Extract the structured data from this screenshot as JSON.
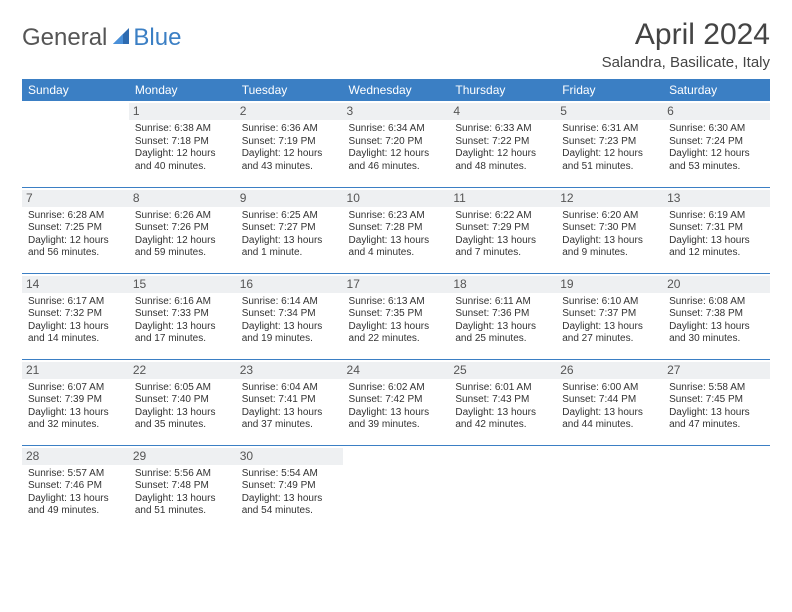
{
  "logo": {
    "part1": "General",
    "part2": "Blue"
  },
  "title": "April 2024",
  "location": "Salandra, Basilicate, Italy",
  "colors": {
    "header_bg": "#3b7fc4",
    "header_text": "#ffffff",
    "cell_border": "#3b7fc4",
    "daynum_bg": "#eef0f2",
    "page_bg": "#ffffff"
  },
  "day_names": [
    "Sunday",
    "Monday",
    "Tuesday",
    "Wednesday",
    "Thursday",
    "Friday",
    "Saturday"
  ],
  "weeks": [
    [
      {
        "n": "",
        "sr": "",
        "ss": "",
        "d1": "",
        "d2": "",
        "empty": true
      },
      {
        "n": "1",
        "sr": "Sunrise: 6:38 AM",
        "ss": "Sunset: 7:18 PM",
        "d1": "Daylight: 12 hours",
        "d2": "and 40 minutes."
      },
      {
        "n": "2",
        "sr": "Sunrise: 6:36 AM",
        "ss": "Sunset: 7:19 PM",
        "d1": "Daylight: 12 hours",
        "d2": "and 43 minutes."
      },
      {
        "n": "3",
        "sr": "Sunrise: 6:34 AM",
        "ss": "Sunset: 7:20 PM",
        "d1": "Daylight: 12 hours",
        "d2": "and 46 minutes."
      },
      {
        "n": "4",
        "sr": "Sunrise: 6:33 AM",
        "ss": "Sunset: 7:22 PM",
        "d1": "Daylight: 12 hours",
        "d2": "and 48 minutes."
      },
      {
        "n": "5",
        "sr": "Sunrise: 6:31 AM",
        "ss": "Sunset: 7:23 PM",
        "d1": "Daylight: 12 hours",
        "d2": "and 51 minutes."
      },
      {
        "n": "6",
        "sr": "Sunrise: 6:30 AM",
        "ss": "Sunset: 7:24 PM",
        "d1": "Daylight: 12 hours",
        "d2": "and 53 minutes."
      }
    ],
    [
      {
        "n": "7",
        "sr": "Sunrise: 6:28 AM",
        "ss": "Sunset: 7:25 PM",
        "d1": "Daylight: 12 hours",
        "d2": "and 56 minutes."
      },
      {
        "n": "8",
        "sr": "Sunrise: 6:26 AM",
        "ss": "Sunset: 7:26 PM",
        "d1": "Daylight: 12 hours",
        "d2": "and 59 minutes."
      },
      {
        "n": "9",
        "sr": "Sunrise: 6:25 AM",
        "ss": "Sunset: 7:27 PM",
        "d1": "Daylight: 13 hours",
        "d2": "and 1 minute."
      },
      {
        "n": "10",
        "sr": "Sunrise: 6:23 AM",
        "ss": "Sunset: 7:28 PM",
        "d1": "Daylight: 13 hours",
        "d2": "and 4 minutes."
      },
      {
        "n": "11",
        "sr": "Sunrise: 6:22 AM",
        "ss": "Sunset: 7:29 PM",
        "d1": "Daylight: 13 hours",
        "d2": "and 7 minutes."
      },
      {
        "n": "12",
        "sr": "Sunrise: 6:20 AM",
        "ss": "Sunset: 7:30 PM",
        "d1": "Daylight: 13 hours",
        "d2": "and 9 minutes."
      },
      {
        "n": "13",
        "sr": "Sunrise: 6:19 AM",
        "ss": "Sunset: 7:31 PM",
        "d1": "Daylight: 13 hours",
        "d2": "and 12 minutes."
      }
    ],
    [
      {
        "n": "14",
        "sr": "Sunrise: 6:17 AM",
        "ss": "Sunset: 7:32 PM",
        "d1": "Daylight: 13 hours",
        "d2": "and 14 minutes."
      },
      {
        "n": "15",
        "sr": "Sunrise: 6:16 AM",
        "ss": "Sunset: 7:33 PM",
        "d1": "Daylight: 13 hours",
        "d2": "and 17 minutes."
      },
      {
        "n": "16",
        "sr": "Sunrise: 6:14 AM",
        "ss": "Sunset: 7:34 PM",
        "d1": "Daylight: 13 hours",
        "d2": "and 19 minutes."
      },
      {
        "n": "17",
        "sr": "Sunrise: 6:13 AM",
        "ss": "Sunset: 7:35 PM",
        "d1": "Daylight: 13 hours",
        "d2": "and 22 minutes."
      },
      {
        "n": "18",
        "sr": "Sunrise: 6:11 AM",
        "ss": "Sunset: 7:36 PM",
        "d1": "Daylight: 13 hours",
        "d2": "and 25 minutes."
      },
      {
        "n": "19",
        "sr": "Sunrise: 6:10 AM",
        "ss": "Sunset: 7:37 PM",
        "d1": "Daylight: 13 hours",
        "d2": "and 27 minutes."
      },
      {
        "n": "20",
        "sr": "Sunrise: 6:08 AM",
        "ss": "Sunset: 7:38 PM",
        "d1": "Daylight: 13 hours",
        "d2": "and 30 minutes."
      }
    ],
    [
      {
        "n": "21",
        "sr": "Sunrise: 6:07 AM",
        "ss": "Sunset: 7:39 PM",
        "d1": "Daylight: 13 hours",
        "d2": "and 32 minutes."
      },
      {
        "n": "22",
        "sr": "Sunrise: 6:05 AM",
        "ss": "Sunset: 7:40 PM",
        "d1": "Daylight: 13 hours",
        "d2": "and 35 minutes."
      },
      {
        "n": "23",
        "sr": "Sunrise: 6:04 AM",
        "ss": "Sunset: 7:41 PM",
        "d1": "Daylight: 13 hours",
        "d2": "and 37 minutes."
      },
      {
        "n": "24",
        "sr": "Sunrise: 6:02 AM",
        "ss": "Sunset: 7:42 PM",
        "d1": "Daylight: 13 hours",
        "d2": "and 39 minutes."
      },
      {
        "n": "25",
        "sr": "Sunrise: 6:01 AM",
        "ss": "Sunset: 7:43 PM",
        "d1": "Daylight: 13 hours",
        "d2": "and 42 minutes."
      },
      {
        "n": "26",
        "sr": "Sunrise: 6:00 AM",
        "ss": "Sunset: 7:44 PM",
        "d1": "Daylight: 13 hours",
        "d2": "and 44 minutes."
      },
      {
        "n": "27",
        "sr": "Sunrise: 5:58 AM",
        "ss": "Sunset: 7:45 PM",
        "d1": "Daylight: 13 hours",
        "d2": "and 47 minutes."
      }
    ],
    [
      {
        "n": "28",
        "sr": "Sunrise: 5:57 AM",
        "ss": "Sunset: 7:46 PM",
        "d1": "Daylight: 13 hours",
        "d2": "and 49 minutes."
      },
      {
        "n": "29",
        "sr": "Sunrise: 5:56 AM",
        "ss": "Sunset: 7:48 PM",
        "d1": "Daylight: 13 hours",
        "d2": "and 51 minutes."
      },
      {
        "n": "30",
        "sr": "Sunrise: 5:54 AM",
        "ss": "Sunset: 7:49 PM",
        "d1": "Daylight: 13 hours",
        "d2": "and 54 minutes."
      },
      {
        "n": "",
        "sr": "",
        "ss": "",
        "d1": "",
        "d2": "",
        "empty": true
      },
      {
        "n": "",
        "sr": "",
        "ss": "",
        "d1": "",
        "d2": "",
        "empty": true
      },
      {
        "n": "",
        "sr": "",
        "ss": "",
        "d1": "",
        "d2": "",
        "empty": true
      },
      {
        "n": "",
        "sr": "",
        "ss": "",
        "d1": "",
        "d2": "",
        "empty": true
      }
    ]
  ]
}
